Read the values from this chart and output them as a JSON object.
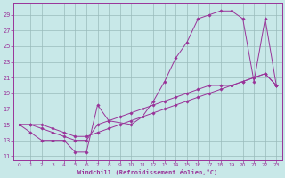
{
  "bg_color": "#c8e8e8",
  "line_color": "#993399",
  "grid_color": "#99bbbb",
  "xlabel": "Windchill (Refroidissement éolien,°C)",
  "xlim_min": -0.5,
  "xlim_max": 23.5,
  "ylim_min": 10.5,
  "ylim_max": 30.5,
  "xticks": [
    0,
    1,
    2,
    3,
    4,
    5,
    6,
    7,
    8,
    9,
    10,
    11,
    12,
    13,
    14,
    15,
    16,
    17,
    18,
    19,
    20,
    21,
    22,
    23
  ],
  "yticks": [
    11,
    13,
    15,
    17,
    19,
    21,
    23,
    25,
    27,
    29
  ],
  "line1_x": [
    0,
    1,
    2,
    3,
    4,
    5,
    6,
    7,
    8,
    10,
    11,
    12,
    13,
    14,
    15,
    16,
    17,
    18,
    19,
    20,
    21,
    22,
    23
  ],
  "line1_y": [
    15,
    14,
    13,
    13,
    13,
    11.5,
    11.5,
    17.5,
    15.5,
    15,
    16,
    18,
    20.5,
    23.5,
    25.5,
    28.5,
    29,
    29.5,
    29.5,
    28.5,
    20.5,
    28.5,
    20
  ],
  "line2_x": [
    0,
    1,
    2,
    3,
    4,
    5,
    6,
    7,
    8,
    9,
    10,
    11,
    12,
    13,
    14,
    15,
    16,
    17,
    18,
    19,
    20,
    21,
    22,
    23
  ],
  "line2_y": [
    15,
    15,
    14.5,
    14,
    13.5,
    13,
    13,
    15,
    15.5,
    16,
    16.5,
    17,
    17.5,
    18,
    18.5,
    19,
    19.5,
    20,
    20,
    20,
    20.5,
    21,
    21.5,
    20
  ],
  "line3_x": [
    0,
    1,
    2,
    3,
    4,
    5,
    6,
    7,
    8,
    9,
    10,
    11,
    12,
    13,
    14,
    15,
    16,
    17,
    18,
    19,
    20,
    21,
    22,
    23
  ],
  "line3_y": [
    15,
    15,
    15,
    14.5,
    14,
    13.5,
    13.5,
    14,
    14.5,
    15,
    15.5,
    16,
    16.5,
    17,
    17.5,
    18,
    18.5,
    19,
    19.5,
    20,
    20.5,
    21,
    21.5,
    20
  ]
}
